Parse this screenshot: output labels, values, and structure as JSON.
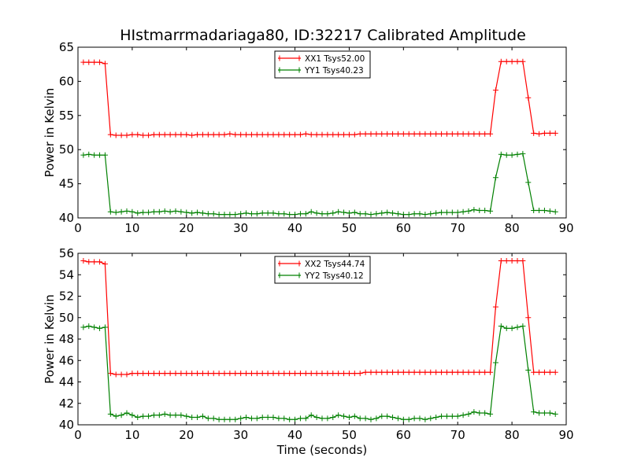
{
  "title": "HIstmarrmadariaga80, ID:32217 Calibrated Amplitude",
  "chart_data": [
    {
      "type": "line",
      "ylabel": "Power in Kelvin",
      "xlabel": "",
      "xlim": [
        0,
        90
      ],
      "ylim": [
        40,
        65
      ],
      "xticks": [
        0,
        10,
        20,
        30,
        40,
        50,
        60,
        70,
        80,
        90
      ],
      "yticks": [
        40,
        45,
        50,
        55,
        60,
        65
      ],
      "legend_position": "top-center",
      "series": [
        {
          "name": "XX1 Tsys52.00",
          "color": "#ff0000",
          "x": [
            1,
            2,
            3,
            4,
            5,
            6,
            7,
            8,
            9,
            10,
            11,
            12,
            13,
            14,
            15,
            16,
            17,
            18,
            19,
            20,
            21,
            22,
            23,
            24,
            25,
            26,
            27,
            28,
            29,
            30,
            31,
            32,
            33,
            34,
            35,
            36,
            37,
            38,
            39,
            40,
            41,
            42,
            43,
            44,
            45,
            46,
            47,
            48,
            49,
            50,
            51,
            52,
            53,
            54,
            55,
            56,
            57,
            58,
            59,
            60,
            61,
            62,
            63,
            64,
            65,
            66,
            67,
            68,
            69,
            70,
            71,
            72,
            73,
            74,
            75,
            76,
            77,
            78,
            79,
            80,
            81,
            82,
            83,
            84,
            85,
            86,
            87,
            88
          ],
          "y": [
            62.8,
            62.8,
            62.8,
            62.8,
            62.6,
            52.2,
            52.1,
            52.1,
            52.1,
            52.2,
            52.2,
            52.1,
            52.1,
            52.2,
            52.2,
            52.2,
            52.2,
            52.2,
            52.2,
            52.2,
            52.1,
            52.2,
            52.2,
            52.2,
            52.2,
            52.2,
            52.2,
            52.3,
            52.2,
            52.2,
            52.2,
            52.2,
            52.2,
            52.2,
            52.2,
            52.2,
            52.2,
            52.2,
            52.2,
            52.2,
            52.2,
            52.3,
            52.2,
            52.2,
            52.2,
            52.2,
            52.2,
            52.2,
            52.2,
            52.2,
            52.2,
            52.3,
            52.3,
            52.3,
            52.3,
            52.3,
            52.3,
            52.3,
            52.3,
            52.3,
            52.3,
            52.3,
            52.3,
            52.3,
            52.3,
            52.3,
            52.3,
            52.3,
            52.3,
            52.3,
            52.3,
            52.3,
            52.3,
            52.3,
            52.3,
            52.3,
            58.7,
            62.9,
            62.9,
            62.9,
            62.9,
            62.9,
            57.6,
            52.4,
            52.3,
            52.4,
            52.4,
            52.4
          ]
        },
        {
          "name": "YY1 Tsys40.23",
          "color": "#008000",
          "x": [
            1,
            2,
            3,
            4,
            5,
            6,
            7,
            8,
            9,
            10,
            11,
            12,
            13,
            14,
            15,
            16,
            17,
            18,
            19,
            20,
            21,
            22,
            23,
            24,
            25,
            26,
            27,
            28,
            29,
            30,
            31,
            32,
            33,
            34,
            35,
            36,
            37,
            38,
            39,
            40,
            41,
            42,
            43,
            44,
            45,
            46,
            47,
            48,
            49,
            50,
            51,
            52,
            53,
            54,
            55,
            56,
            57,
            58,
            59,
            60,
            61,
            62,
            63,
            64,
            65,
            66,
            67,
            68,
            69,
            70,
            71,
            72,
            73,
            74,
            75,
            76,
            77,
            78,
            79,
            80,
            81,
            82,
            83,
            84,
            85,
            86,
            87,
            88
          ],
          "y": [
            49.2,
            49.3,
            49.2,
            49.2,
            49.2,
            40.9,
            40.8,
            40.9,
            41.0,
            40.9,
            40.7,
            40.8,
            40.8,
            40.9,
            40.9,
            41.0,
            40.9,
            41.0,
            40.9,
            40.8,
            40.7,
            40.8,
            40.7,
            40.6,
            40.6,
            40.5,
            40.5,
            40.5,
            40.5,
            40.6,
            40.7,
            40.6,
            40.6,
            40.7,
            40.7,
            40.7,
            40.6,
            40.6,
            40.5,
            40.5,
            40.6,
            40.6,
            40.9,
            40.7,
            40.6,
            40.6,
            40.7,
            40.9,
            40.8,
            40.7,
            40.8,
            40.6,
            40.6,
            40.5,
            40.6,
            40.7,
            40.8,
            40.7,
            40.6,
            40.5,
            40.5,
            40.6,
            40.6,
            40.5,
            40.6,
            40.7,
            40.8,
            40.8,
            40.8,
            40.8,
            40.9,
            41.0,
            41.2,
            41.1,
            41.1,
            41.0,
            45.9,
            49.3,
            49.2,
            49.2,
            49.3,
            49.4,
            45.2,
            41.1,
            41.1,
            41.1,
            41.0,
            40.9
          ]
        }
      ]
    },
    {
      "type": "line",
      "ylabel": "Power in Kelvin",
      "xlabel": "Time (seconds)",
      "xlim": [
        0,
        90
      ],
      "ylim": [
        40,
        56
      ],
      "xticks": [
        0,
        10,
        20,
        30,
        40,
        50,
        60,
        70,
        80,
        90
      ],
      "yticks": [
        40,
        42,
        44,
        46,
        48,
        50,
        52,
        54,
        56
      ],
      "legend_position": "top-center",
      "series": [
        {
          "name": "XX2 Tsys44.74",
          "color": "#ff0000",
          "x": [
            1,
            2,
            3,
            4,
            5,
            6,
            7,
            8,
            9,
            10,
            11,
            12,
            13,
            14,
            15,
            16,
            17,
            18,
            19,
            20,
            21,
            22,
            23,
            24,
            25,
            26,
            27,
            28,
            29,
            30,
            31,
            32,
            33,
            34,
            35,
            36,
            37,
            38,
            39,
            40,
            41,
            42,
            43,
            44,
            45,
            46,
            47,
            48,
            49,
            50,
            51,
            52,
            53,
            54,
            55,
            56,
            57,
            58,
            59,
            60,
            61,
            62,
            63,
            64,
            65,
            66,
            67,
            68,
            69,
            70,
            71,
            72,
            73,
            74,
            75,
            76,
            77,
            78,
            79,
            80,
            81,
            82,
            83,
            84,
            85,
            86,
            87,
            88
          ],
          "y": [
            55.3,
            55.2,
            55.2,
            55.2,
            55.0,
            44.8,
            44.7,
            44.7,
            44.7,
            44.8,
            44.8,
            44.8,
            44.8,
            44.8,
            44.8,
            44.8,
            44.8,
            44.8,
            44.8,
            44.8,
            44.8,
            44.8,
            44.8,
            44.8,
            44.8,
            44.8,
            44.8,
            44.8,
            44.8,
            44.8,
            44.8,
            44.8,
            44.8,
            44.8,
            44.8,
            44.8,
            44.8,
            44.8,
            44.8,
            44.8,
            44.8,
            44.8,
            44.8,
            44.8,
            44.8,
            44.8,
            44.8,
            44.8,
            44.8,
            44.8,
            44.8,
            44.8,
            44.9,
            44.9,
            44.9,
            44.9,
            44.9,
            44.9,
            44.9,
            44.9,
            44.9,
            44.9,
            44.9,
            44.9,
            44.9,
            44.9,
            44.9,
            44.9,
            44.9,
            44.9,
            44.9,
            44.9,
            44.9,
            44.9,
            44.9,
            44.9,
            51.0,
            55.3,
            55.3,
            55.3,
            55.3,
            55.3,
            50.0,
            44.9,
            44.9,
            44.9,
            44.9,
            44.9
          ]
        },
        {
          "name": "YY2 Tsys40.12",
          "color": "#008000",
          "x": [
            1,
            2,
            3,
            4,
            5,
            6,
            7,
            8,
            9,
            10,
            11,
            12,
            13,
            14,
            15,
            16,
            17,
            18,
            19,
            20,
            21,
            22,
            23,
            24,
            25,
            26,
            27,
            28,
            29,
            30,
            31,
            32,
            33,
            34,
            35,
            36,
            37,
            38,
            39,
            40,
            41,
            42,
            43,
            44,
            45,
            46,
            47,
            48,
            49,
            50,
            51,
            52,
            53,
            54,
            55,
            56,
            57,
            58,
            59,
            60,
            61,
            62,
            63,
            64,
            65,
            66,
            67,
            68,
            69,
            70,
            71,
            72,
            73,
            74,
            75,
            76,
            77,
            78,
            79,
            80,
            81,
            82,
            83,
            84,
            85,
            86,
            87,
            88
          ],
          "y": [
            49.1,
            49.2,
            49.1,
            49.0,
            49.1,
            41.0,
            40.8,
            40.9,
            41.1,
            40.9,
            40.7,
            40.8,
            40.8,
            40.9,
            40.9,
            41.0,
            40.9,
            40.9,
            40.9,
            40.8,
            40.7,
            40.7,
            40.8,
            40.6,
            40.6,
            40.5,
            40.5,
            40.5,
            40.5,
            40.6,
            40.7,
            40.6,
            40.6,
            40.7,
            40.7,
            40.7,
            40.6,
            40.6,
            40.5,
            40.5,
            40.6,
            40.6,
            40.9,
            40.7,
            40.6,
            40.6,
            40.7,
            40.9,
            40.8,
            40.7,
            40.8,
            40.6,
            40.6,
            40.5,
            40.6,
            40.8,
            40.8,
            40.7,
            40.6,
            40.5,
            40.5,
            40.6,
            40.6,
            40.5,
            40.6,
            40.7,
            40.8,
            40.8,
            40.8,
            40.8,
            40.9,
            41.0,
            41.2,
            41.1,
            41.1,
            41.0,
            45.8,
            49.2,
            49.0,
            49.0,
            49.1,
            49.2,
            45.1,
            41.2,
            41.1,
            41.1,
            41.1,
            41.0
          ]
        }
      ]
    }
  ]
}
